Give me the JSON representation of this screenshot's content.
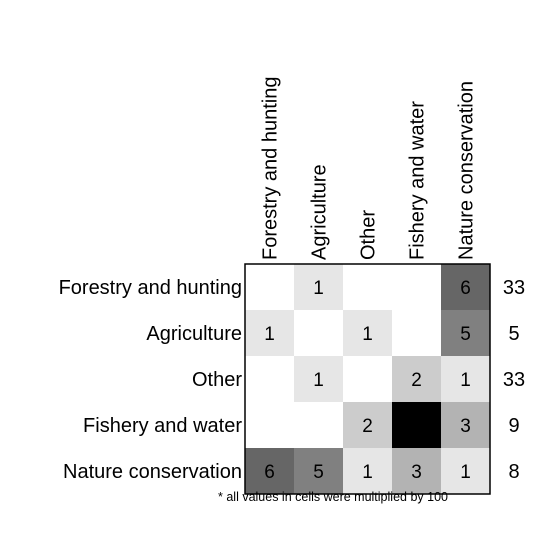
{
  "chart_data": {
    "type": "heatmap",
    "rows": [
      "Forestry and hunting",
      "Agriculture",
      "Other",
      "Fishery and water",
      "Nature conservation"
    ],
    "columns": [
      "Forestry and hunting",
      "Agriculture",
      "Other",
      "Fishery and water",
      "Nature conservation"
    ],
    "values": [
      [
        null,
        1,
        null,
        null,
        6
      ],
      [
        1,
        null,
        1,
        null,
        5
      ],
      [
        null,
        1,
        null,
        2,
        1
      ],
      [
        null,
        null,
        2,
        10,
        3
      ],
      [
        6,
        5,
        1,
        3,
        1
      ]
    ],
    "row_totals": [
      33,
      5,
      33,
      9,
      8
    ],
    "value_range": [
      0,
      10
    ],
    "color_scale": [
      "#ffffff",
      "#000000"
    ],
    "footnote": "* all values in cells were multiplied by 100"
  }
}
